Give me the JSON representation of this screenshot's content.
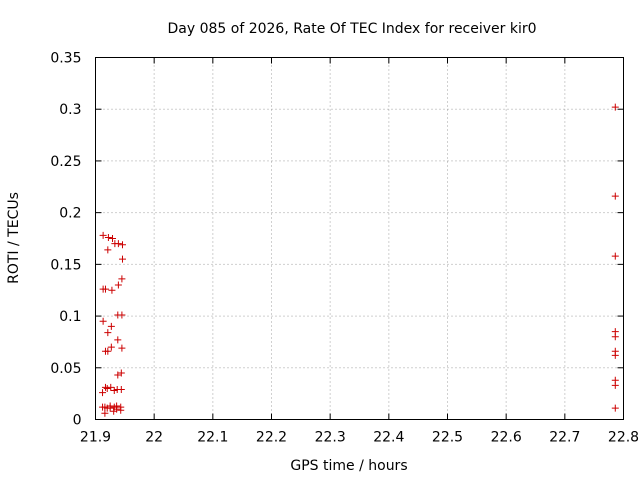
{
  "chart_data": {
    "type": "scatter",
    "title": "Day 085 of 2026, Rate Of TEC Index for receiver kir0",
    "xlabel": "GPS time / hours",
    "ylabel": "ROTI / TECUs",
    "xlim": [
      21.9,
      22.8
    ],
    "ylim": [
      0,
      0.35
    ],
    "xticks": [
      "21.9",
      "22",
      "22.1",
      "22.2",
      "22.3",
      "22.4",
      "22.5",
      "22.6",
      "22.7",
      "22.8"
    ],
    "yticks": [
      "0",
      "0.05",
      "0.1",
      "0.15",
      "0.2",
      "0.25",
      "0.3",
      "0.35"
    ],
    "grid": true,
    "marker": "+",
    "color": "#cc0000",
    "points": [
      [
        21.912,
        0.012
      ],
      [
        21.912,
        0.026
      ],
      [
        21.913,
        0.095
      ],
      [
        21.913,
        0.126
      ],
      [
        21.913,
        0.178
      ],
      [
        21.916,
        0.006
      ],
      [
        21.916,
        0.012
      ],
      [
        21.917,
        0.031
      ],
      [
        21.917,
        0.066
      ],
      [
        21.917,
        0.126
      ],
      [
        21.92,
        0.011
      ],
      [
        21.92,
        0.03
      ],
      [
        21.921,
        0.066
      ],
      [
        21.921,
        0.084
      ],
      [
        21.921,
        0.164
      ],
      [
        21.922,
        0.176
      ],
      [
        21.925,
        0.011
      ],
      [
        21.925,
        0.013
      ],
      [
        21.926,
        0.031
      ],
      [
        21.927,
        0.07
      ],
      [
        21.927,
        0.09
      ],
      [
        21.928,
        0.125
      ],
      [
        21.929,
        0.175
      ],
      [
        21.931,
        0.008
      ],
      [
        21.932,
        0.012
      ],
      [
        21.932,
        0.028
      ],
      [
        21.933,
        0.17
      ],
      [
        21.936,
        0.01
      ],
      [
        21.936,
        0.013
      ],
      [
        21.937,
        0.029
      ],
      [
        21.938,
        0.043
      ],
      [
        21.938,
        0.077
      ],
      [
        21.938,
        0.101
      ],
      [
        21.939,
        0.13
      ],
      [
        21.939,
        0.17
      ],
      [
        21.943,
        0.009
      ],
      [
        21.943,
        0.012
      ],
      [
        21.944,
        0.029
      ],
      [
        21.944,
        0.045
      ],
      [
        21.945,
        0.069
      ],
      [
        21.945,
        0.101
      ],
      [
        21.945,
        0.136
      ],
      [
        21.946,
        0.155
      ],
      [
        21.946,
        0.169
      ],
      [
        22.786,
        0.011
      ],
      [
        22.786,
        0.033
      ],
      [
        22.786,
        0.038
      ],
      [
        22.786,
        0.062
      ],
      [
        22.786,
        0.066
      ],
      [
        22.786,
        0.08
      ],
      [
        22.786,
        0.085
      ],
      [
        22.786,
        0.158
      ],
      [
        22.786,
        0.216
      ],
      [
        22.786,
        0.302
      ]
    ]
  }
}
